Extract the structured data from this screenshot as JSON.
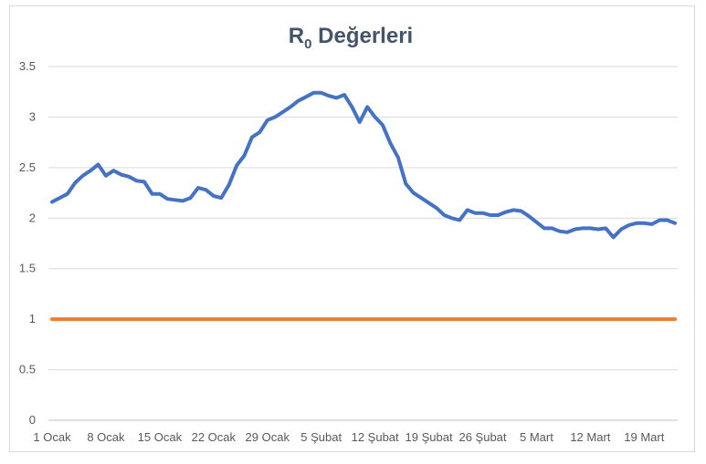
{
  "chart_data": {
    "type": "line",
    "title_main": "R",
    "title_sub": "0",
    "title_rest": " Değerleri",
    "ylim": [
      0,
      3.5
    ],
    "y_ticks": [
      "0",
      "0.5",
      "1",
      "1.5",
      "2",
      "2.5",
      "3",
      "3.5"
    ],
    "x_ticks": [
      "1 Ocak",
      "8 Ocak",
      "15 Ocak",
      "22 Ocak",
      "29 Ocak",
      "5 Şubat",
      "12 Şubat",
      "19 Şubat",
      "26 Şubat",
      "5 Mart",
      "12 Mart",
      "19 Mart"
    ],
    "grid": true,
    "legend": "none",
    "series": [
      {
        "color": "#4472c4",
        "values": [
          2.16,
          2.2,
          2.24,
          2.35,
          2.42,
          2.47,
          2.53,
          2.42,
          2.47,
          2.43,
          2.41,
          2.37,
          2.36,
          2.24,
          2.24,
          2.19,
          2.18,
          2.17,
          2.2,
          2.3,
          2.28,
          2.22,
          2.2,
          2.33,
          2.52,
          2.62,
          2.8,
          2.85,
          2.97,
          3.0,
          3.05,
          3.1,
          3.16,
          3.2,
          3.24,
          3.24,
          3.21,
          3.19,
          3.22,
          3.1,
          2.95,
          3.1,
          3.0,
          2.92,
          2.74,
          2.6,
          2.34,
          2.25,
          2.2,
          2.15,
          2.1,
          2.03,
          2.0,
          1.98,
          2.08,
          2.05,
          2.05,
          2.03,
          2.03,
          2.06,
          2.08,
          2.07,
          2.02,
          1.96,
          1.9,
          1.9,
          1.87,
          1.86,
          1.89,
          1.9,
          1.9,
          1.89,
          1.9,
          1.81,
          1.89,
          1.93,
          1.95,
          1.95,
          1.94,
          1.98,
          1.98,
          1.95
        ]
      },
      {
        "color": "#ed7d31",
        "values": [
          1,
          1
        ]
      }
    ]
  }
}
